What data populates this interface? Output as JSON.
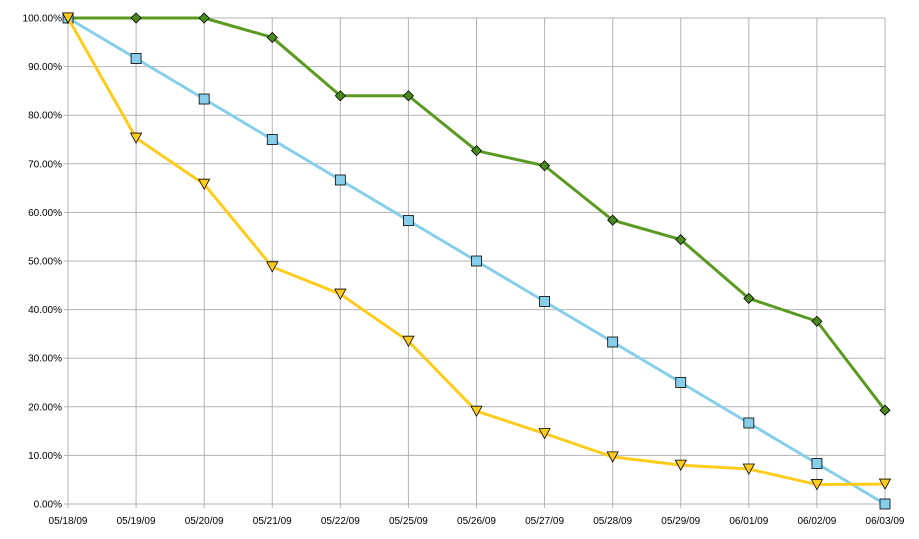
{
  "chart_data": {
    "type": "line",
    "title": "",
    "xlabel": "",
    "ylabel": "",
    "categories": [
      "05/18/09",
      "05/19/09",
      "05/20/09",
      "05/21/09",
      "05/22/09",
      "05/25/09",
      "05/26/09",
      "05/27/09",
      "05/28/09",
      "05/29/09",
      "06/01/09",
      "06/02/09",
      "06/03/09"
    ],
    "ylim": [
      0,
      100
    ],
    "y_ticks": [
      "0.00%",
      "10.00%",
      "20.00%",
      "30.00%",
      "40.00%",
      "50.00%",
      "60.00%",
      "70.00%",
      "80.00%",
      "90.00%",
      "100.00%"
    ],
    "grid": true,
    "legend": "none",
    "series": [
      {
        "color": "#5b9a22",
        "marker": "diamond",
        "marker_fill": "#4a8a1a",
        "values": [
          100,
          100,
          100,
          96,
          84,
          84,
          72.7,
          69.6,
          58.4,
          54.4,
          42.3,
          37.6,
          19.3
        ]
      },
      {
        "color": "#87ceeb",
        "marker": "square",
        "marker_fill": "#87ceeb",
        "values": [
          100,
          91.67,
          83.33,
          75,
          66.67,
          58.33,
          50,
          41.67,
          33.33,
          25,
          16.67,
          8.33,
          0
        ]
      },
      {
        "color": "#ffcc1e",
        "marker": "triangle-down",
        "marker_fill": "#ffcc1e",
        "values": [
          100,
          75.3,
          65.8,
          48.8,
          43.2,
          33.5,
          19.1,
          14.5,
          9.7,
          8.0,
          7.2,
          4.0,
          4.1
        ]
      }
    ]
  }
}
